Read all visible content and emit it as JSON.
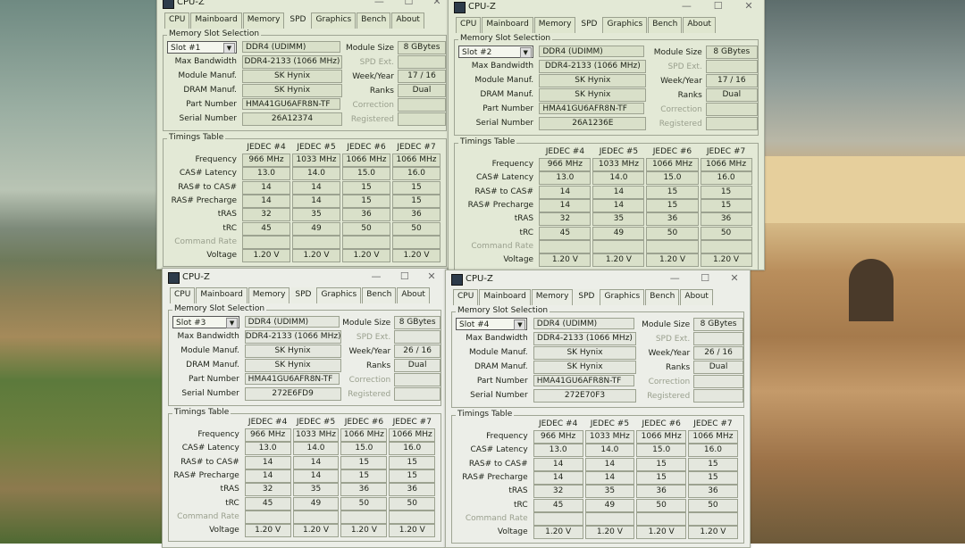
{
  "app": {
    "title": "CPU-Z",
    "tabs": [
      "CPU",
      "Mainboard",
      "Memory",
      "SPD",
      "Graphics",
      "Bench",
      "About"
    ],
    "active_tab": "SPD",
    "window_buttons": {
      "minimize": "—",
      "maximize": "☐",
      "close": "✕"
    }
  },
  "labels": {
    "slot_group": "Memory Slot Selection",
    "max_bandwidth": "Max Bandwidth",
    "module_manuf": "Module Manuf.",
    "dram_manuf": "DRAM Manuf.",
    "part_number": "Part Number",
    "serial_number": "Serial Number",
    "module_size": "Module Size",
    "spd_ext": "SPD Ext.",
    "week_year": "Week/Year",
    "ranks": "Ranks",
    "correction": "Correction",
    "registered": "Registered",
    "timings_group": "Timings Table",
    "timing_rows": [
      "Frequency",
      "CAS# Latency",
      "RAS# to CAS#",
      "RAS# Precharge",
      "tRAS",
      "tRC",
      "Command Rate",
      "Voltage"
    ]
  },
  "windows": [
    {
      "slot": "Slot #1",
      "type": "DDR4 (UDIMM)",
      "max_bandwidth": "DDR4-2133 (1066 MHz)",
      "module_manuf": "SK Hynix",
      "dram_manuf": "SK Hynix",
      "part_number": "HMA41GU6AFR8N-TF",
      "serial_number": "26A12374",
      "module_size": "8 GBytes",
      "spd_ext": "",
      "week_year": "17 / 16",
      "ranks": "Dual",
      "correction": "",
      "registered": ""
    },
    {
      "slot": "Slot #2",
      "type": "DDR4 (UDIMM)",
      "max_bandwidth": "DDR4-2133 (1066 MHz)",
      "module_manuf": "SK Hynix",
      "dram_manuf": "SK Hynix",
      "part_number": "HMA41GU6AFR8N-TF",
      "serial_number": "26A1236E",
      "module_size": "8 GBytes",
      "spd_ext": "",
      "week_year": "17 / 16",
      "ranks": "Dual",
      "correction": "",
      "registered": ""
    },
    {
      "slot": "Slot #3",
      "type": "DDR4 (UDIMM)",
      "max_bandwidth": "DDR4-2133 (1066 MHz)",
      "module_manuf": "SK Hynix",
      "dram_manuf": "SK Hynix",
      "part_number": "HMA41GU6AFR8N-TF",
      "serial_number": "272E6FD9",
      "module_size": "8 GBytes",
      "spd_ext": "",
      "week_year": "26 / 16",
      "ranks": "Dual",
      "correction": "",
      "registered": ""
    },
    {
      "slot": "Slot #4",
      "type": "DDR4 (UDIMM)",
      "max_bandwidth": "DDR4-2133 (1066 MHz)",
      "module_manuf": "SK Hynix",
      "dram_manuf": "SK Hynix",
      "part_number": "HMA41GU6AFR8N-TF",
      "serial_number": "272E70F3",
      "module_size": "8 GBytes",
      "spd_ext": "",
      "week_year": "26 / 16",
      "ranks": "Dual",
      "correction": "",
      "registered": ""
    }
  ],
  "timings": {
    "columns": [
      "JEDEC #4",
      "JEDEC #5",
      "JEDEC #6",
      "JEDEC #7"
    ],
    "rows": [
      [
        "966 MHz",
        "1033 MHz",
        "1066 MHz",
        "1066 MHz"
      ],
      [
        "13.0",
        "14.0",
        "15.0",
        "16.0"
      ],
      [
        "14",
        "14",
        "15",
        "15"
      ],
      [
        "14",
        "14",
        "15",
        "15"
      ],
      [
        "32",
        "35",
        "36",
        "36"
      ],
      [
        "45",
        "49",
        "50",
        "50"
      ],
      [
        "",
        "",
        "",
        ""
      ],
      [
        "1.20 V",
        "1.20 V",
        "1.20 V",
        "1.20 V"
      ]
    ]
  }
}
